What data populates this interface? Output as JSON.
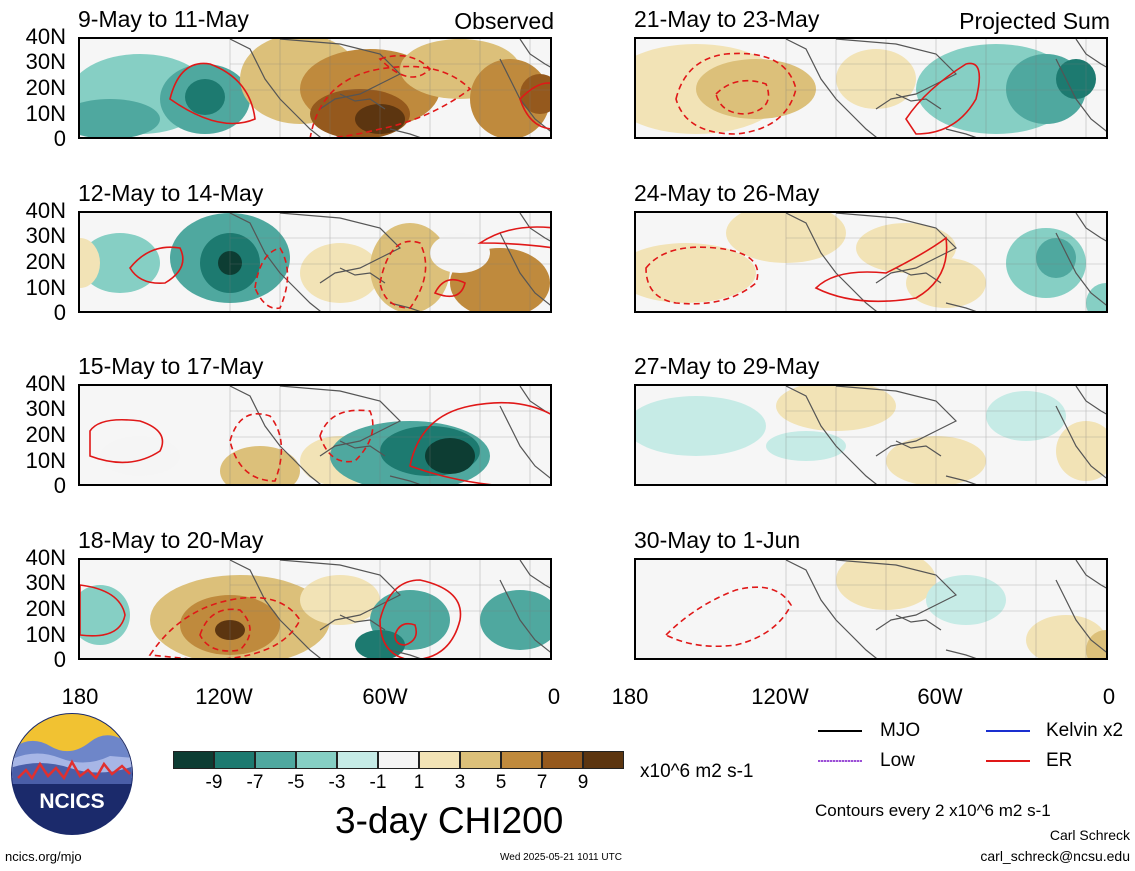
{
  "panels_left": [
    {
      "title": "9-May to 11-May",
      "tag": "Observed"
    },
    {
      "title": "12-May to 14-May",
      "tag": ""
    },
    {
      "title": "15-May to 17-May",
      "tag": ""
    },
    {
      "title": "18-May to 20-May",
      "tag": ""
    }
  ],
  "panels_right": [
    {
      "title": "21-May to 23-May",
      "tag": "Projected Sum"
    },
    {
      "title": "24-May to 26-May",
      "tag": ""
    },
    {
      "title": "27-May to 29-May",
      "tag": ""
    },
    {
      "title": "30-May to 1-Jun",
      "tag": ""
    }
  ],
  "lat_labels": [
    "40N",
    "30N",
    "20N",
    "10N",
    "0"
  ],
  "lon_labels": [
    "180",
    "120W",
    "60W",
    "0"
  ],
  "colorbar": {
    "ticks": [
      "-9",
      "-7",
      "-5",
      "-3",
      "-1",
      "1",
      "3",
      "5",
      "7",
      "9"
    ],
    "colors": [
      "#0d3d33",
      "#1d7a70",
      "#4fa89f",
      "#86cfc4",
      "#c6ebe6",
      "#f5f5f5",
      "#f2e3b6",
      "#dcc07a",
      "#bf8a3d",
      "#95591d",
      "#5c3510"
    ],
    "units": "x10^6 m2 s-1"
  },
  "main_title": "3-day CHI200",
  "legend": [
    {
      "label": "MJO",
      "color": "#000000"
    },
    {
      "label": "Kelvin x2",
      "color": "#1a2fd0"
    },
    {
      "label": "Low",
      "color": "#9b4fd6"
    },
    {
      "label": "ER",
      "color": "#e01818"
    }
  ],
  "contour_note": "Contours every 2 x10^6 m2 s-1",
  "author": "Carl Schreck",
  "email": "carl_schreck@ncsu.edu",
  "url": "ncics.org/mjo",
  "timestamp": "Wed 2025-05-21 1011 UTC",
  "logo_text": "NCICS"
}
